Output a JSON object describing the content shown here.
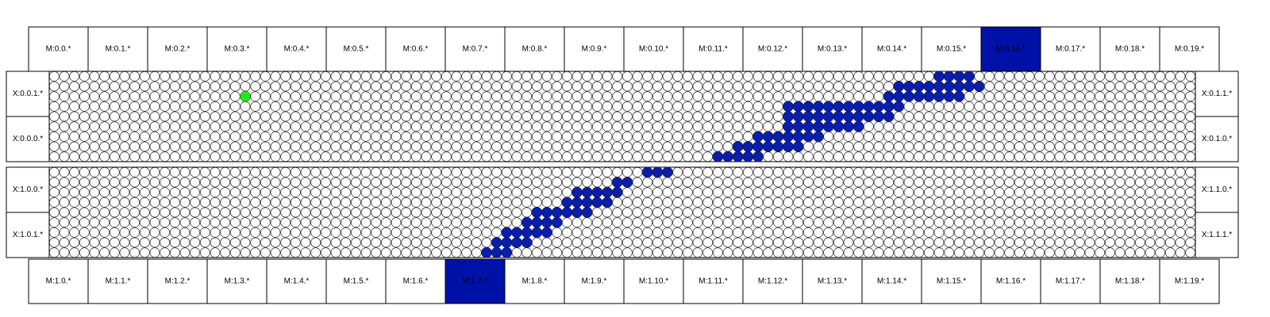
{
  "top_modules": [
    "M:0.0.*",
    "M:0.1.*",
    "M:0.2.*",
    "M:0.3.*",
    "M:0.4.*",
    "M:0.5.*",
    "M:0.6.*",
    "M:0.7.*",
    "M:0.8.*",
    "M:0.9.*",
    "M:0.10.*",
    "M:0.11.*",
    "M:0.12.*",
    "M:0.13.*",
    "M:0.14.*",
    "M:0.15.*",
    "M:0.16.*",
    "M:0.17.*",
    "M:0.18.*",
    "M:0.19.*"
  ],
  "bottom_modules": [
    "M:1.0.*",
    "M:1.1.*",
    "M:1.2.*",
    "M:1.3.*",
    "M:1.4.*",
    "M:1.5.*",
    "M:1.6.*",
    "M:1.7.*",
    "M:1.8.*",
    "M:1.9.*",
    "M:1.10.*",
    "M:1.11.*",
    "M:1.12.*",
    "M:1.13.*",
    "M:1.14.*",
    "M:1.15.*",
    "M:1.16.*",
    "M:1.17.*",
    "M:1.18.*",
    "M:1.19.*"
  ],
  "top_highlight_index": 16,
  "bottom_highlight_index": 7,
  "side_labels": {
    "block1_left": [
      "X:0.0.1.*",
      "X:0.0.0.*"
    ],
    "block1_right": [
      "X:0.1.1.*",
      "X:0.1.0.*"
    ],
    "block2_left": [
      "X:1.0.0.*",
      "X:1.0.1.*"
    ],
    "block2_right": [
      "X:1.1.0.*",
      "X:1.1.1.*"
    ]
  },
  "colors": {
    "path": "#0b1ea8",
    "start": "#22e81b",
    "highlight": "#0011a8",
    "grid_stroke": "#000000",
    "background": "#ffffff"
  },
  "grid": {
    "cols": 114,
    "rows_per_block": 9
  },
  "start_node": {
    "block": 0,
    "col": 19,
    "row": 2
  },
  "path_nodes": [
    {
      "block": 0,
      "row": 0,
      "cols": [
        88,
        89,
        90,
        91
      ]
    },
    {
      "block": 0,
      "row": 1,
      "cols": [
        84,
        85,
        86,
        87,
        88,
        89,
        90,
        91,
        92
      ]
    },
    {
      "block": 0,
      "row": 2,
      "cols": [
        83,
        84,
        85,
        86,
        87,
        88,
        89,
        90
      ]
    },
    {
      "block": 0,
      "row": 3,
      "cols": [
        73,
        74,
        75,
        76,
        77,
        78,
        79,
        80,
        81,
        82,
        83,
        84
      ]
    },
    {
      "block": 0,
      "row": 4,
      "cols": [
        73,
        74,
        75,
        76,
        77,
        78,
        79,
        80,
        81,
        82,
        83
      ]
    },
    {
      "block": 0,
      "row": 5,
      "cols": [
        73,
        74,
        75,
        76,
        77,
        78,
        79,
        80
      ]
    },
    {
      "block": 0,
      "row": 6,
      "cols": [
        70,
        71,
        72,
        73,
        74,
        75,
        76
      ]
    },
    {
      "block": 0,
      "row": 7,
      "cols": [
        68,
        69,
        70,
        71,
        72,
        73,
        74
      ]
    },
    {
      "block": 0,
      "row": 8,
      "cols": [
        66,
        67,
        68,
        69,
        70
      ]
    },
    {
      "block": 1,
      "row": 0,
      "cols": [
        59,
        60,
        61
      ]
    },
    {
      "block": 1,
      "row": 1,
      "cols": [
        56,
        57
      ]
    },
    {
      "block": 1,
      "row": 2,
      "cols": [
        52,
        53,
        54,
        55,
        56
      ]
    },
    {
      "block": 1,
      "row": 3,
      "cols": [
        51,
        52,
        53,
        54,
        55
      ]
    },
    {
      "block": 1,
      "row": 4,
      "cols": [
        48,
        49,
        50,
        51,
        52,
        53
      ]
    },
    {
      "block": 1,
      "row": 5,
      "cols": [
        47,
        48,
        49,
        50
      ]
    },
    {
      "block": 1,
      "row": 6,
      "cols": [
        45,
        46,
        47,
        48,
        49
      ]
    },
    {
      "block": 1,
      "row": 7,
      "cols": [
        44,
        45,
        46,
        47
      ]
    },
    {
      "block": 1,
      "row": 8,
      "cols": [
        43,
        44,
        45
      ]
    }
  ]
}
